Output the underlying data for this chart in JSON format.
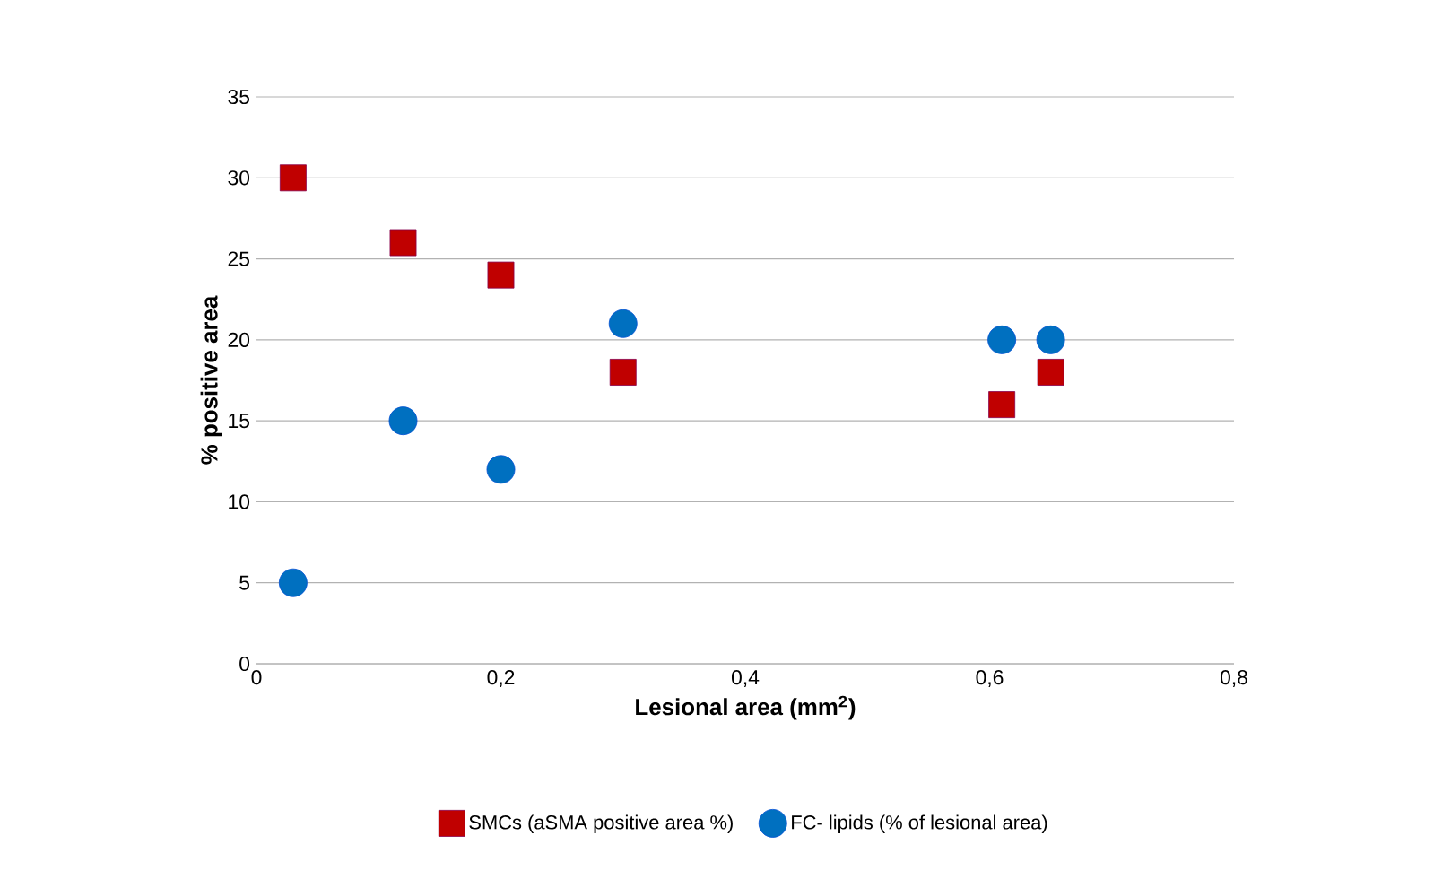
{
  "chart_data": {
    "type": "scatter",
    "xlabel": "Lesional area (mm$^{2}$)",
    "ylabel": "% positive area",
    "series": [
      {
        "name": "SMCs (aSMA positive area %)",
        "color": "#c00000",
        "marker": "square",
        "x": [
          0.03,
          0.12,
          0.2,
          0.3,
          0.61,
          0.65
        ],
        "values": [
          30,
          26,
          24,
          18,
          16,
          18
        ]
      },
      {
        "name": "FC- lipids (% of lesional area)",
        "color": "#0070c0",
        "marker": "circle",
        "x": [
          0.03,
          0.12,
          0.2,
          0.3,
          0.61,
          0.65
        ],
        "values": [
          5,
          15,
          12,
          21,
          20,
          20
        ]
      }
    ],
    "xlim": [
      0,
      0.8
    ],
    "ylim": [
      0,
      35
    ],
    "xticks": [
      0,
      {
        "value": 0.2,
        "label": "0,2"
      },
      {
        "value": 0.4,
        "label": "0,4"
      },
      {
        "value": 0.6,
        "label": "0,6"
      },
      {
        "value": 0.8,
        "label": "0,8"
      }
    ],
    "yticks": [
      0,
      5,
      10,
      15,
      20,
      25,
      30,
      35
    ],
    "grid": "y",
    "legend": "bottom"
  }
}
